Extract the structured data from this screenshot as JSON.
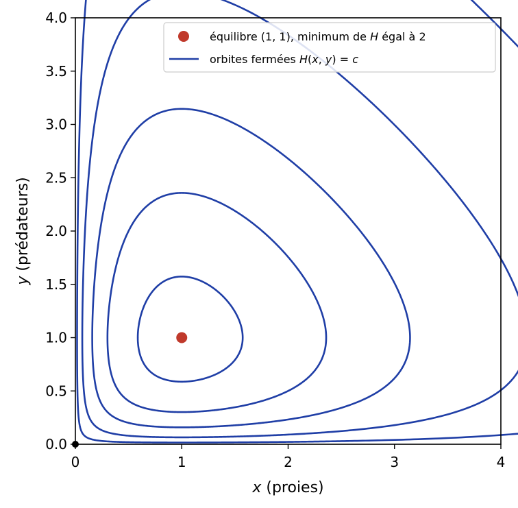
{
  "chart_data": {
    "type": "line",
    "xlabel_var": "x",
    "xlabel_rest": " (proies)",
    "ylabel_var": "y",
    "ylabel_rest": " (prédateurs)",
    "xlim": [
      0,
      4
    ],
    "ylim": [
      0,
      4
    ],
    "xticks": [
      "0",
      "1",
      "2",
      "3",
      "4"
    ],
    "yticks": [
      "0.0",
      "0.5",
      "1.0",
      "1.5",
      "2.0",
      "2.5",
      "3.0",
      "3.5",
      "4.0"
    ],
    "equilibrium": {
      "x": 1,
      "y": 1
    },
    "orbit_levels": [
      2.12,
      2.5,
      3.0,
      3.8,
      5.15
    ],
    "series": [
      {
        "name": "équilibre (1, 1), minimum de H égal à 2",
        "type": "scatter"
      },
      {
        "name": "orbites fermées H(x, y) = c",
        "type": "line"
      }
    ],
    "legend": {
      "placement": "top-right",
      "entry1": {
        "a": "équilibre ",
        "b": "(1, 1)",
        "c": ", minimum de ",
        "d": "H",
        "e": " égal à 2"
      },
      "entry2": {
        "a": "orbites fermées ",
        "b": "H",
        "c": "(",
        "d": "x",
        "e": ", ",
        "f": "y",
        "g": ") = ",
        "h": "c"
      }
    },
    "grid": false,
    "colors": {
      "orbit": "#1f3ea6",
      "equilibrium": "#c0392b",
      "origin": "#000000"
    }
  }
}
